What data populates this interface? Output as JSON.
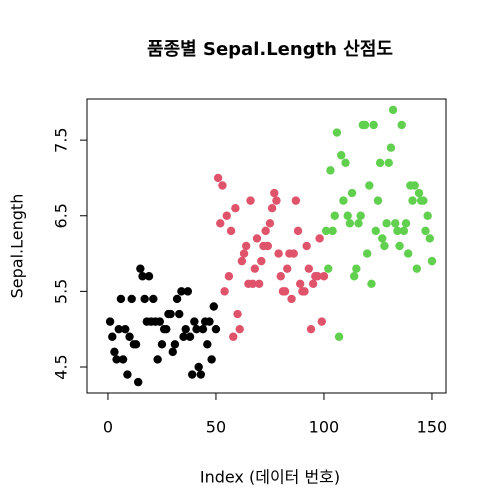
{
  "chart_data": {
    "type": "scatter",
    "title": "품종별 Sepal.Length 산점도",
    "x_label": "Index (데이터 번호)",
    "y_label": "Sepal.Length",
    "xlim": [
      -9.7,
      156.5
    ],
    "xticks": [
      0,
      50,
      100,
      150
    ],
    "ylim": [
      4.156,
      8.044
    ],
    "yticks": [
      4.5,
      5.5,
      6.5,
      7.5
    ],
    "series": [
      {
        "color": "#000000",
        "x": [
          1,
          2,
          3,
          4,
          5,
          6,
          7,
          8,
          9,
          10,
          11,
          12,
          13,
          14,
          15,
          16,
          17,
          18,
          19,
          20,
          21,
          22,
          23,
          24,
          25,
          26,
          27,
          28,
          29,
          30,
          31,
          32,
          33,
          34,
          35,
          36,
          37,
          38,
          39,
          40,
          41,
          42,
          43,
          44,
          45,
          46,
          47,
          48,
          49,
          50
        ],
        "values": [
          5.1,
          4.9,
          4.7,
          4.6,
          5.0,
          5.4,
          4.6,
          5.0,
          4.4,
          4.9,
          5.4,
          4.8,
          4.8,
          4.3,
          5.8,
          5.7,
          5.4,
          5.1,
          5.7,
          5.1,
          5.4,
          5.1,
          4.6,
          5.1,
          4.8,
          5.0,
          5.0,
          5.2,
          5.2,
          4.7,
          4.8,
          5.4,
          5.2,
          5.5,
          4.9,
          5.0,
          5.5,
          4.9,
          4.4,
          5.1,
          5.0,
          4.5,
          4.4,
          5.0,
          5.1,
          4.8,
          5.1,
          4.6,
          5.3,
          5.0
        ]
      },
      {
        "color": "#DF536B",
        "x": [
          51,
          52,
          53,
          54,
          55,
          56,
          57,
          58,
          59,
          60,
          61,
          62,
          63,
          64,
          65,
          66,
          67,
          68,
          69,
          70,
          71,
          72,
          73,
          74,
          75,
          76,
          77,
          78,
          79,
          80,
          81,
          82,
          83,
          84,
          85,
          86,
          87,
          88,
          89,
          90,
          91,
          92,
          93,
          94,
          95,
          96,
          97,
          98,
          99,
          100
        ],
        "values": [
          7.0,
          6.4,
          6.9,
          5.5,
          6.5,
          5.7,
          6.3,
          4.9,
          6.6,
          5.2,
          5.0,
          5.9,
          6.0,
          6.1,
          5.6,
          6.7,
          5.6,
          5.8,
          6.2,
          5.6,
          5.9,
          6.1,
          6.3,
          6.1,
          6.4,
          6.6,
          6.8,
          6.7,
          6.0,
          5.7,
          5.5,
          5.5,
          5.8,
          6.0,
          5.4,
          6.0,
          6.7,
          6.3,
          5.6,
          5.5,
          5.5,
          6.1,
          5.8,
          5.0,
          5.6,
          5.7,
          5.7,
          6.2,
          5.1,
          5.7
        ]
      },
      {
        "color": "#61D04F",
        "x": [
          101,
          102,
          103,
          104,
          105,
          106,
          107,
          108,
          109,
          110,
          111,
          112,
          113,
          114,
          115,
          116,
          117,
          118,
          119,
          120,
          121,
          122,
          123,
          124,
          125,
          126,
          127,
          128,
          129,
          130,
          131,
          132,
          133,
          134,
          135,
          136,
          137,
          138,
          139,
          140,
          141,
          142,
          143,
          144,
          145,
          146,
          147,
          148,
          149,
          150
        ],
        "values": [
          6.3,
          5.8,
          7.1,
          6.3,
          6.5,
          7.6,
          4.9,
          7.3,
          6.7,
          7.2,
          6.5,
          6.4,
          6.8,
          5.7,
          5.8,
          6.4,
          6.5,
          7.7,
          7.7,
          6.0,
          6.9,
          5.6,
          7.7,
          6.3,
          6.7,
          7.2,
          6.2,
          6.1,
          6.4,
          7.2,
          7.4,
          7.9,
          6.4,
          6.3,
          6.1,
          7.7,
          6.3,
          6.4,
          6.0,
          6.9,
          6.7,
          6.9,
          5.8,
          6.8,
          6.7,
          6.7,
          6.3,
          6.5,
          6.2,
          5.9
        ]
      }
    ]
  }
}
